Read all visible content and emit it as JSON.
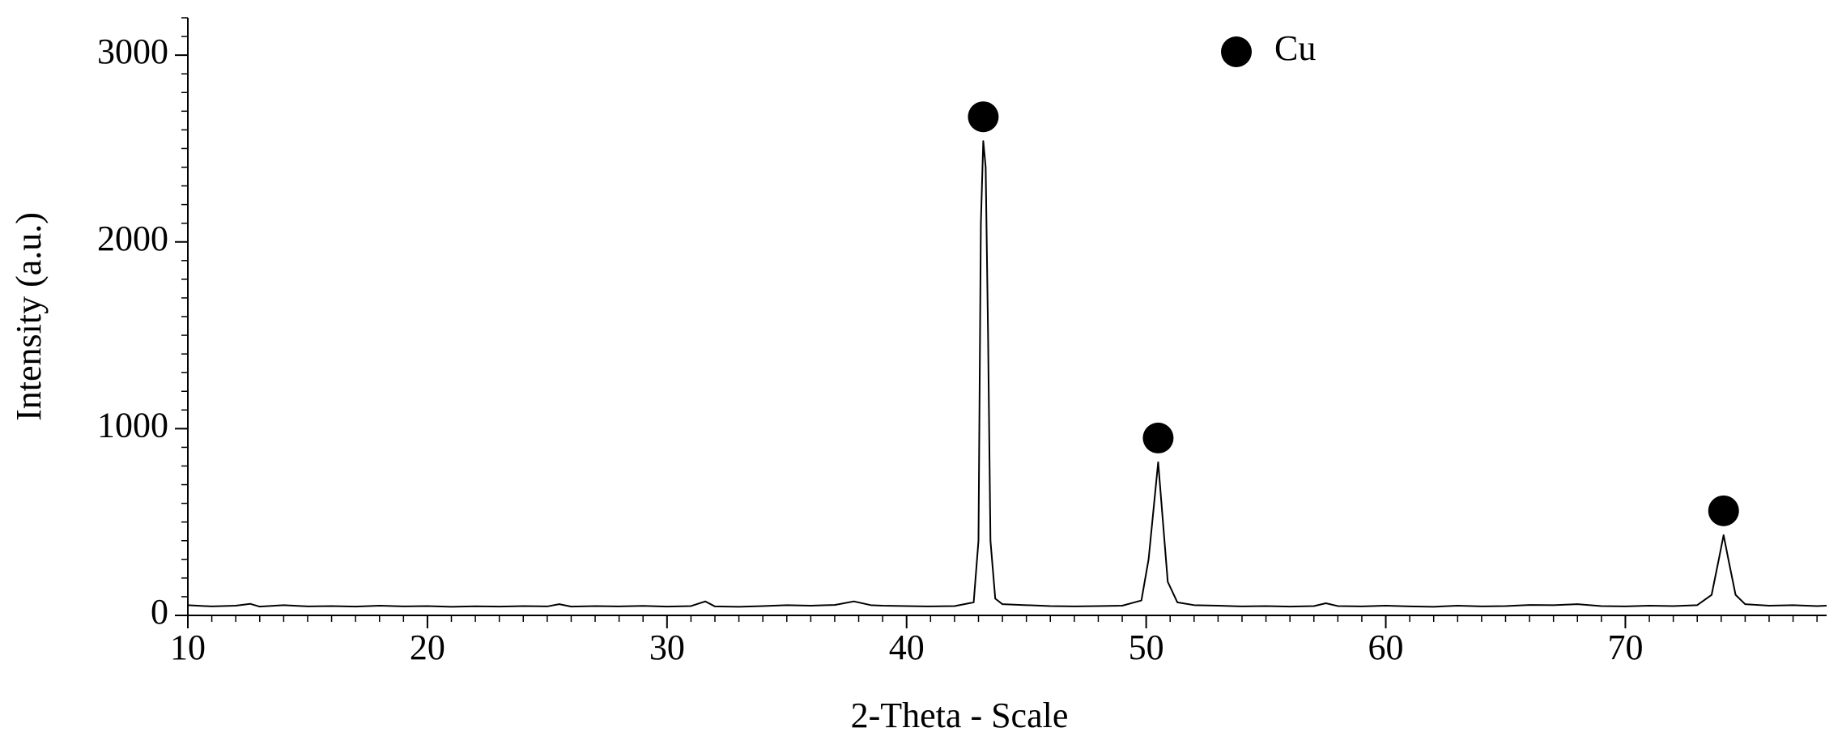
{
  "chart_data": {
    "type": "line",
    "xlabel": "2-Theta - Scale",
    "ylabel": "Intensity (a.u.)",
    "xlim": [
      10,
      78.4
    ],
    "xticks": [
      10,
      20,
      30,
      40,
      50,
      60,
      70
    ],
    "xminor": 1,
    "ylim": [
      0,
      3200
    ],
    "yticks": [
      0,
      1000,
      2000,
      3000
    ],
    "yminor": 100,
    "series": [
      {
        "name": "Cu",
        "color": "#000000",
        "x": [
          10,
          11,
          12,
          12.6,
          13,
          14,
          15,
          16,
          17,
          18,
          19,
          20,
          21,
          22,
          23,
          24,
          25,
          25.5,
          26,
          27,
          28,
          29,
          30,
          31,
          31.6,
          32,
          33,
          34,
          35,
          36,
          37,
          37.8,
          38.5,
          39,
          40,
          41,
          42,
          42.8,
          43.0,
          43.1,
          43.2,
          43.3,
          43.4,
          43.5,
          43.7,
          44,
          45,
          46,
          47,
          48,
          49,
          49.8,
          50.1,
          50.3,
          50.5,
          50.7,
          50.9,
          51.3,
          52,
          53,
          54,
          55,
          56,
          57,
          57.5,
          58,
          59,
          60,
          61,
          62,
          63,
          64,
          65,
          66,
          67,
          68,
          69,
          70,
          71,
          72,
          73,
          73.6,
          73.9,
          74.1,
          74.3,
          74.6,
          75,
          76,
          77,
          78,
          78.4
        ],
        "values": [
          55,
          48,
          52,
          62,
          47,
          55,
          48,
          50,
          47,
          52,
          48,
          50,
          46,
          49,
          47,
          50,
          48,
          60,
          47,
          50,
          48,
          51,
          47,
          50,
          75,
          48,
          46,
          50,
          55,
          52,
          56,
          75,
          55,
          52,
          50,
          48,
          50,
          70,
          400,
          2100,
          2540,
          2400,
          1500,
          400,
          90,
          60,
          55,
          50,
          48,
          50,
          52,
          80,
          300,
          560,
          820,
          500,
          180,
          70,
          55,
          52,
          48,
          50,
          47,
          50,
          65,
          50,
          48,
          52,
          48,
          46,
          52,
          48,
          50,
          56,
          55,
          60,
          50,
          48,
          52,
          50,
          55,
          110,
          300,
          430,
          300,
          110,
          60,
          52,
          55,
          50,
          52
        ]
      }
    ],
    "peak_markers": {
      "x": [
        43.2,
        50.5,
        74.1
      ],
      "y": [
        2540,
        820,
        430
      ]
    }
  }
}
